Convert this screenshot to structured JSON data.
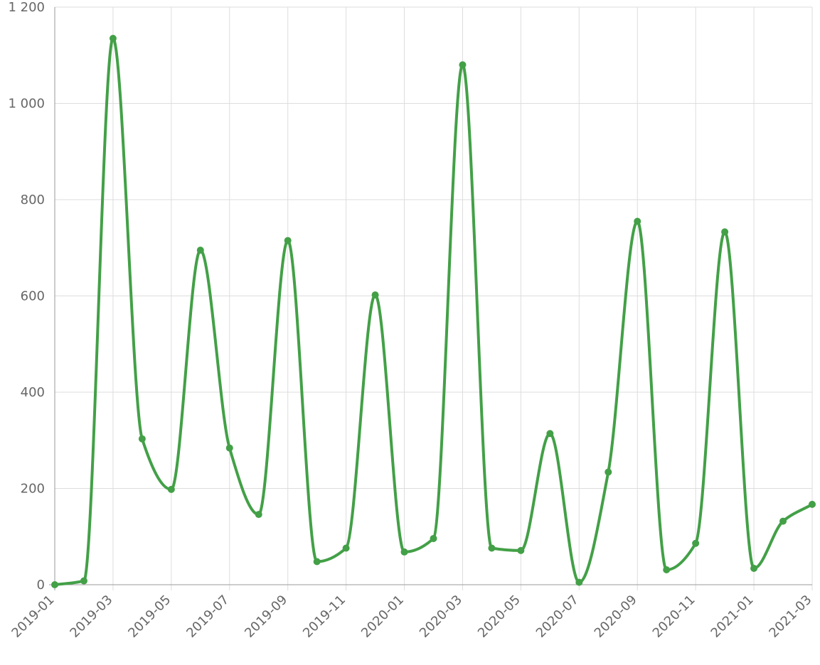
{
  "chart_data": {
    "type": "line",
    "title": "",
    "xlabel": "",
    "ylabel": "",
    "x": [
      "2019-01",
      "2019-02",
      "2019-03",
      "2019-04",
      "2019-05",
      "2019-06",
      "2019-07",
      "2019-08",
      "2019-09",
      "2019-10",
      "2019-11",
      "2019-12",
      "2020-01",
      "2020-02",
      "2020-03",
      "2020-04",
      "2020-05",
      "2020-06",
      "2020-07",
      "2020-08",
      "2020-09",
      "2020-10",
      "2020-11",
      "2020-12",
      "2021-01",
      "2021-02",
      "2021-03"
    ],
    "x_tick_labels": [
      "2019-01",
      "2019-03",
      "2019-05",
      "2019-07",
      "2019-09",
      "2019-11",
      "2020-01",
      "2020-03",
      "2020-05",
      "2020-07",
      "2020-09",
      "2020-11",
      "2021-01",
      "2021-03"
    ],
    "y_tick_labels": [
      "0",
      "200",
      "400",
      "600",
      "800",
      "1 000",
      "1 200"
    ],
    "y_ticks": [
      0,
      200,
      400,
      600,
      800,
      1000,
      1200
    ],
    "ylim": [
      0,
      1200
    ],
    "grid": true,
    "legend": "none",
    "series": [
      {
        "color": "#43a047",
        "values": [
          0,
          8,
          1135,
          303,
          198,
          695,
          284,
          146,
          715,
          48,
          76,
          602,
          68,
          96,
          1080,
          76,
          71,
          314,
          5,
          234,
          755,
          31,
          86,
          733,
          34,
          132,
          167
        ]
      }
    ]
  }
}
